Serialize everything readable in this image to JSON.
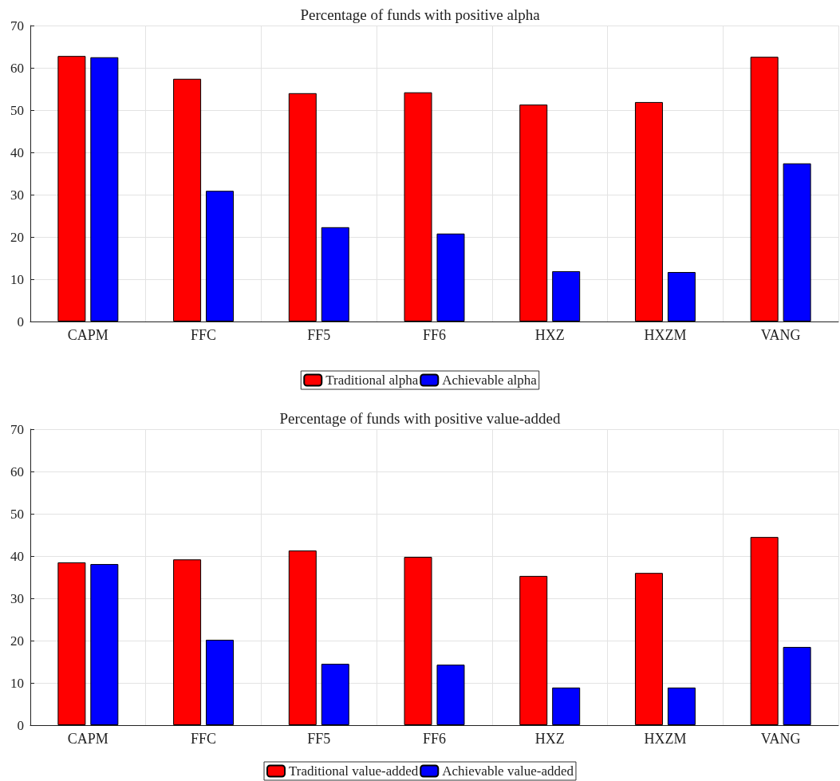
{
  "chart_data": [
    {
      "type": "bar",
      "title": "Percentage of funds with positive alpha",
      "categories": [
        "CAPM",
        "FFC",
        "FF5",
        "FF6",
        "HXZ",
        "HXZM",
        "VANG"
      ],
      "series": [
        {
          "name": "Traditional alpha",
          "color": "#ff0000",
          "values": [
            62.8,
            57.4,
            54.0,
            54.2,
            51.3,
            51.9,
            62.6
          ]
        },
        {
          "name": "Achievable alpha",
          "color": "#0000ff",
          "values": [
            62.5,
            30.9,
            22.3,
            20.8,
            11.9,
            11.7,
            37.4
          ]
        }
      ],
      "ylim": [
        0,
        70
      ],
      "yticks": [
        0,
        10,
        20,
        30,
        40,
        50,
        60,
        70
      ],
      "grid": true,
      "legend": "bottom"
    },
    {
      "type": "bar",
      "title": "Percentage of funds with positive value-added",
      "categories": [
        "CAPM",
        "FFC",
        "FF5",
        "FF6",
        "HXZ",
        "HXZM",
        "VANG"
      ],
      "series": [
        {
          "name": "Traditional value-added",
          "color": "#ff0000",
          "values": [
            38.5,
            39.2,
            41.3,
            39.8,
            35.3,
            36.0,
            44.5
          ]
        },
        {
          "name": "Achievable value-added",
          "color": "#0000ff",
          "values": [
            38.1,
            20.2,
            14.5,
            14.3,
            8.9,
            8.9,
            18.5
          ]
        }
      ],
      "ylim": [
        0,
        70
      ],
      "yticks": [
        0,
        10,
        20,
        30,
        40,
        50,
        60,
        70
      ],
      "grid": true,
      "legend": "bottom"
    }
  ]
}
